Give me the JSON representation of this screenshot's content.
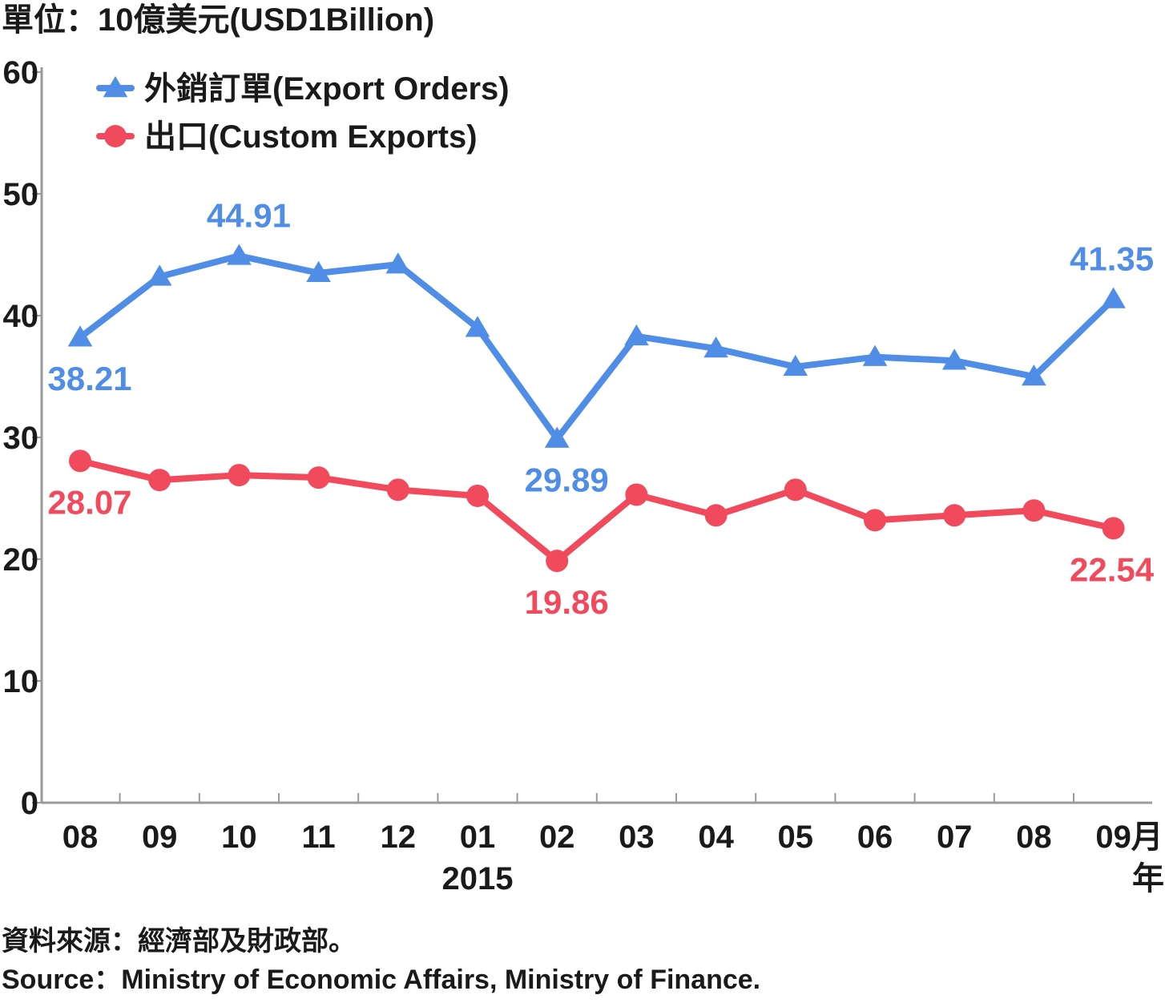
{
  "unit_label": "單位：10億美元(USD1Billion)",
  "x_unit_labels": {
    "month": "月",
    "year": "年"
  },
  "source": {
    "zh": "資料來源：經濟部及財政部。",
    "en": "Source：Ministry of Economic Affairs, Ministry of Finance."
  },
  "colors": {
    "export_orders": "#4f8de6",
    "custom_exports": "#f04a5c",
    "axis": "#9a9a9a",
    "text": "#1a1a1a"
  },
  "chart_data": {
    "type": "line",
    "categories": [
      "08",
      "09",
      "10",
      "11",
      "12",
      "01",
      "02",
      "03",
      "04",
      "05",
      "06",
      "07",
      "08",
      "09"
    ],
    "year_labels": [
      {
        "category_index": 5,
        "label": "2015"
      }
    ],
    "ylim": [
      0,
      60
    ],
    "yticks": [
      0,
      10,
      20,
      30,
      40,
      50,
      60
    ],
    "grid": false,
    "legend_position": "top-left",
    "series": [
      {
        "key": "export_orders",
        "name": "外銷訂單(Export Orders)",
        "marker": "triangle",
        "values": [
          38.21,
          43.2,
          44.91,
          43.5,
          44.2,
          39.0,
          29.89,
          38.3,
          37.3,
          35.8,
          36.6,
          36.3,
          35.0,
          41.35
        ],
        "labels": [
          {
            "index": 0,
            "text": "38.21",
            "position": "below"
          },
          {
            "index": 2,
            "text": "44.91",
            "position": "above"
          },
          {
            "index": 6,
            "text": "29.89",
            "position": "below"
          },
          {
            "index": 13,
            "text": "41.35",
            "position": "above"
          }
        ]
      },
      {
        "key": "custom_exports",
        "name": "出口(Custom Exports)",
        "marker": "circle",
        "values": [
          28.07,
          26.5,
          26.9,
          26.7,
          25.7,
          25.2,
          19.86,
          25.3,
          23.6,
          25.7,
          23.2,
          23.6,
          24.0,
          22.54
        ],
        "labels": [
          {
            "index": 0,
            "text": "28.07",
            "position": "below"
          },
          {
            "index": 6,
            "text": "19.86",
            "position": "below"
          },
          {
            "index": 13,
            "text": "22.54",
            "position": "below"
          }
        ]
      }
    ]
  }
}
